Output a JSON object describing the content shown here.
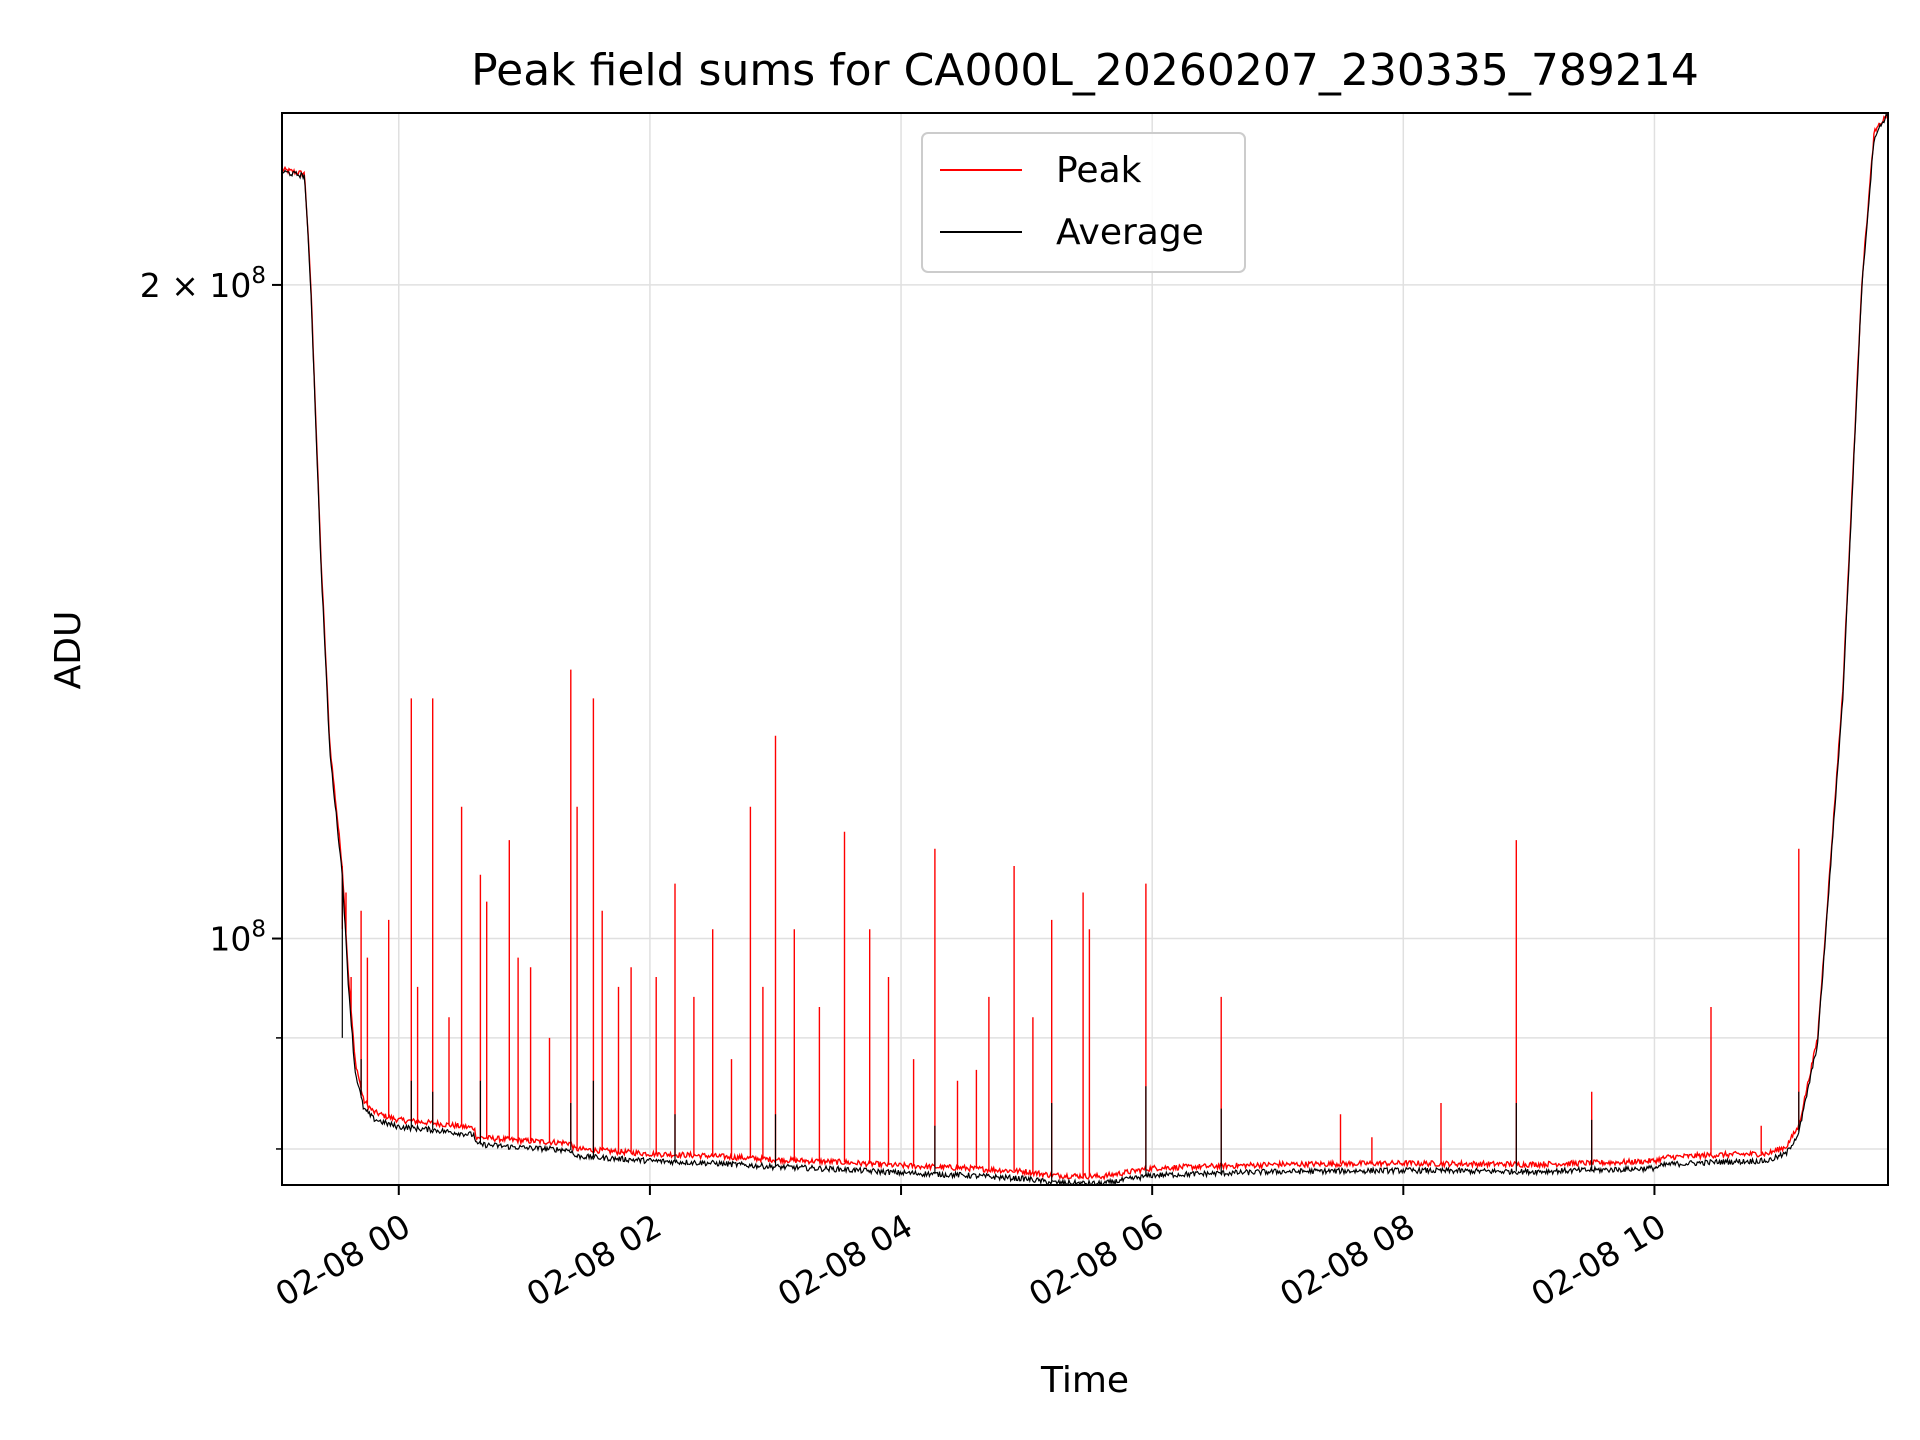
{
  "chart_data": {
    "type": "line",
    "title": "Peak field sums for CA000L_20260207_230335_789214",
    "xlabel": "Time",
    "ylabel": "ADU",
    "yscale": "log",
    "xlim_hours": [
      -0.93,
      11.86
    ],
    "ylim": [
      77000000,
      240000000
    ],
    "x_ticks": [
      {
        "hour": 0,
        "label": "02-08 00"
      },
      {
        "hour": 2,
        "label": "02-08 02"
      },
      {
        "hour": 4,
        "label": "02-08 04"
      },
      {
        "hour": 6,
        "label": "02-08 06"
      },
      {
        "hour": 8,
        "label": "02-08 08"
      },
      {
        "hour": 10,
        "label": "02-08 10"
      }
    ],
    "y_major_ticks": [
      {
        "value": 100000000,
        "label_base": "10",
        "label_exp": "8"
      },
      {
        "value": 200000000,
        "label_base": "2 × 10",
        "label_exp": "8"
      }
    ],
    "y_minor_ticks": [
      80000000,
      90000000
    ],
    "grid": true,
    "legend_position": "top-center",
    "colors": {
      "peak": "#ff0000",
      "average": "#000000",
      "grid": "#e0e0e0"
    },
    "series": [
      {
        "name": "Peak",
        "color": "#ff0000",
        "base_x": [
          -0.93,
          -0.75,
          -0.7,
          -0.62,
          -0.55,
          -0.45,
          -0.4,
          -0.35,
          -0.28,
          -0.2,
          -0.1,
          0.0,
          0.3,
          0.6,
          0.62,
          1.0,
          1.37,
          1.4,
          2.0,
          2.5,
          3.0,
          3.5,
          4.0,
          4.5,
          5.0,
          5.2,
          5.6,
          6.0,
          7.0,
          8.0,
          9.0,
          9.8,
          10.0,
          10.1,
          10.5,
          10.9,
          11.05,
          11.15,
          11.3,
          11.5,
          11.65,
          11.75,
          11.86
        ],
        "base_y": [
          226000000,
          225000000,
          200000000,
          150000000,
          123000000,
          108000000,
          96000000,
          88000000,
          84200000,
          83200000,
          82800000,
          82500000,
          82200000,
          81800000,
          81000000,
          80700000,
          80500000,
          80000000,
          79600000,
          79400000,
          79100000,
          78900000,
          78600000,
          78400000,
          78100000,
          77800000,
          77700000,
          78400000,
          78700000,
          78800000,
          78700000,
          78900000,
          79000000,
          79300000,
          79500000,
          79600000,
          80200000,
          82000000,
          90000000,
          130000000,
          200000000,
          235000000,
          240000000
        ],
        "spikes": [
          [
            -0.45,
            101000000
          ],
          [
            -0.42,
            105000000
          ],
          [
            -0.38,
            96000000
          ],
          [
            -0.3,
            103000000
          ],
          [
            -0.25,
            98000000
          ],
          [
            -0.08,
            102000000
          ],
          [
            0.1,
            129000000
          ],
          [
            0.15,
            95000000
          ],
          [
            0.27,
            129000000
          ],
          [
            0.4,
            92000000
          ],
          [
            0.5,
            115000000
          ],
          [
            0.65,
            107000000
          ],
          [
            0.7,
            104000000
          ],
          [
            0.88,
            111000000
          ],
          [
            0.95,
            98000000
          ],
          [
            1.05,
            97000000
          ],
          [
            1.2,
            90000000
          ],
          [
            1.37,
            133000000
          ],
          [
            1.42,
            115000000
          ],
          [
            1.55,
            129000000
          ],
          [
            1.62,
            103000000
          ],
          [
            1.75,
            95000000
          ],
          [
            1.85,
            97000000
          ],
          [
            2.05,
            96000000
          ],
          [
            2.2,
            106000000
          ],
          [
            2.35,
            94000000
          ],
          [
            2.5,
            101000000
          ],
          [
            2.65,
            88000000
          ],
          [
            2.8,
            115000000
          ],
          [
            2.9,
            95000000
          ],
          [
            3.0,
            124000000
          ],
          [
            3.15,
            101000000
          ],
          [
            3.35,
            93000000
          ],
          [
            3.55,
            112000000
          ],
          [
            3.75,
            101000000
          ],
          [
            3.9,
            96000000
          ],
          [
            4.1,
            88000000
          ],
          [
            4.27,
            110000000
          ],
          [
            4.45,
            86000000
          ],
          [
            4.6,
            87000000
          ],
          [
            4.7,
            94000000
          ],
          [
            4.9,
            108000000
          ],
          [
            5.05,
            92000000
          ],
          [
            5.2,
            102000000
          ],
          [
            5.45,
            105000000
          ],
          [
            5.5,
            101000000
          ],
          [
            5.95,
            106000000
          ],
          [
            6.55,
            94000000
          ],
          [
            7.5,
            83000000
          ],
          [
            7.75,
            81000000
          ],
          [
            8.3,
            84000000
          ],
          [
            8.9,
            111000000
          ],
          [
            9.5,
            85000000
          ],
          [
            10.45,
            93000000
          ],
          [
            10.85,
            82000000
          ],
          [
            11.15,
            110000000
          ]
        ]
      },
      {
        "name": "Average",
        "color": "#000000",
        "base_x": [
          -0.93,
          -0.75,
          -0.7,
          -0.62,
          -0.55,
          -0.45,
          -0.4,
          -0.35,
          -0.28,
          -0.2,
          -0.1,
          0.0,
          0.3,
          0.6,
          0.62,
          1.0,
          1.37,
          1.4,
          2.0,
          2.5,
          3.0,
          3.5,
          4.0,
          4.5,
          5.0,
          5.2,
          5.6,
          6.0,
          7.0,
          8.0,
          9.0,
          9.8,
          10.0,
          10.1,
          10.5,
          10.9,
          11.05,
          11.15,
          11.3,
          11.5,
          11.65,
          11.75,
          11.86
        ],
        "base_y": [
          225500000,
          224500000,
          199000000,
          149000000,
          122000000,
          107000000,
          95000000,
          87000000,
          83500000,
          82600000,
          82200000,
          81900000,
          81600000,
          81200000,
          80400000,
          80100000,
          79900000,
          79400000,
          79000000,
          78800000,
          78500000,
          78300000,
          78000000,
          77800000,
          77500000,
          77200000,
          77100000,
          77800000,
          78100000,
          78200000,
          78100000,
          78300000,
          78400000,
          78700000,
          78900000,
          79000000,
          79600000,
          81400000,
          89500000,
          129000000,
          199000000,
          234000000,
          240000000
        ],
        "spikes": [
          [
            -0.45,
            90000000
          ],
          [
            -0.3,
            88000000
          ],
          [
            0.1,
            86000000
          ],
          [
            0.27,
            85000000
          ],
          [
            0.65,
            86000000
          ],
          [
            1.37,
            84000000
          ],
          [
            1.55,
            86000000
          ],
          [
            2.2,
            83000000
          ],
          [
            3.0,
            83000000
          ],
          [
            4.27,
            82000000
          ],
          [
            5.2,
            84000000
          ],
          [
            5.95,
            85500000
          ],
          [
            6.55,
            83500000
          ],
          [
            8.9,
            84000000
          ],
          [
            9.5,
            82500000
          ],
          [
            11.15,
            85000000
          ]
        ]
      }
    ]
  }
}
